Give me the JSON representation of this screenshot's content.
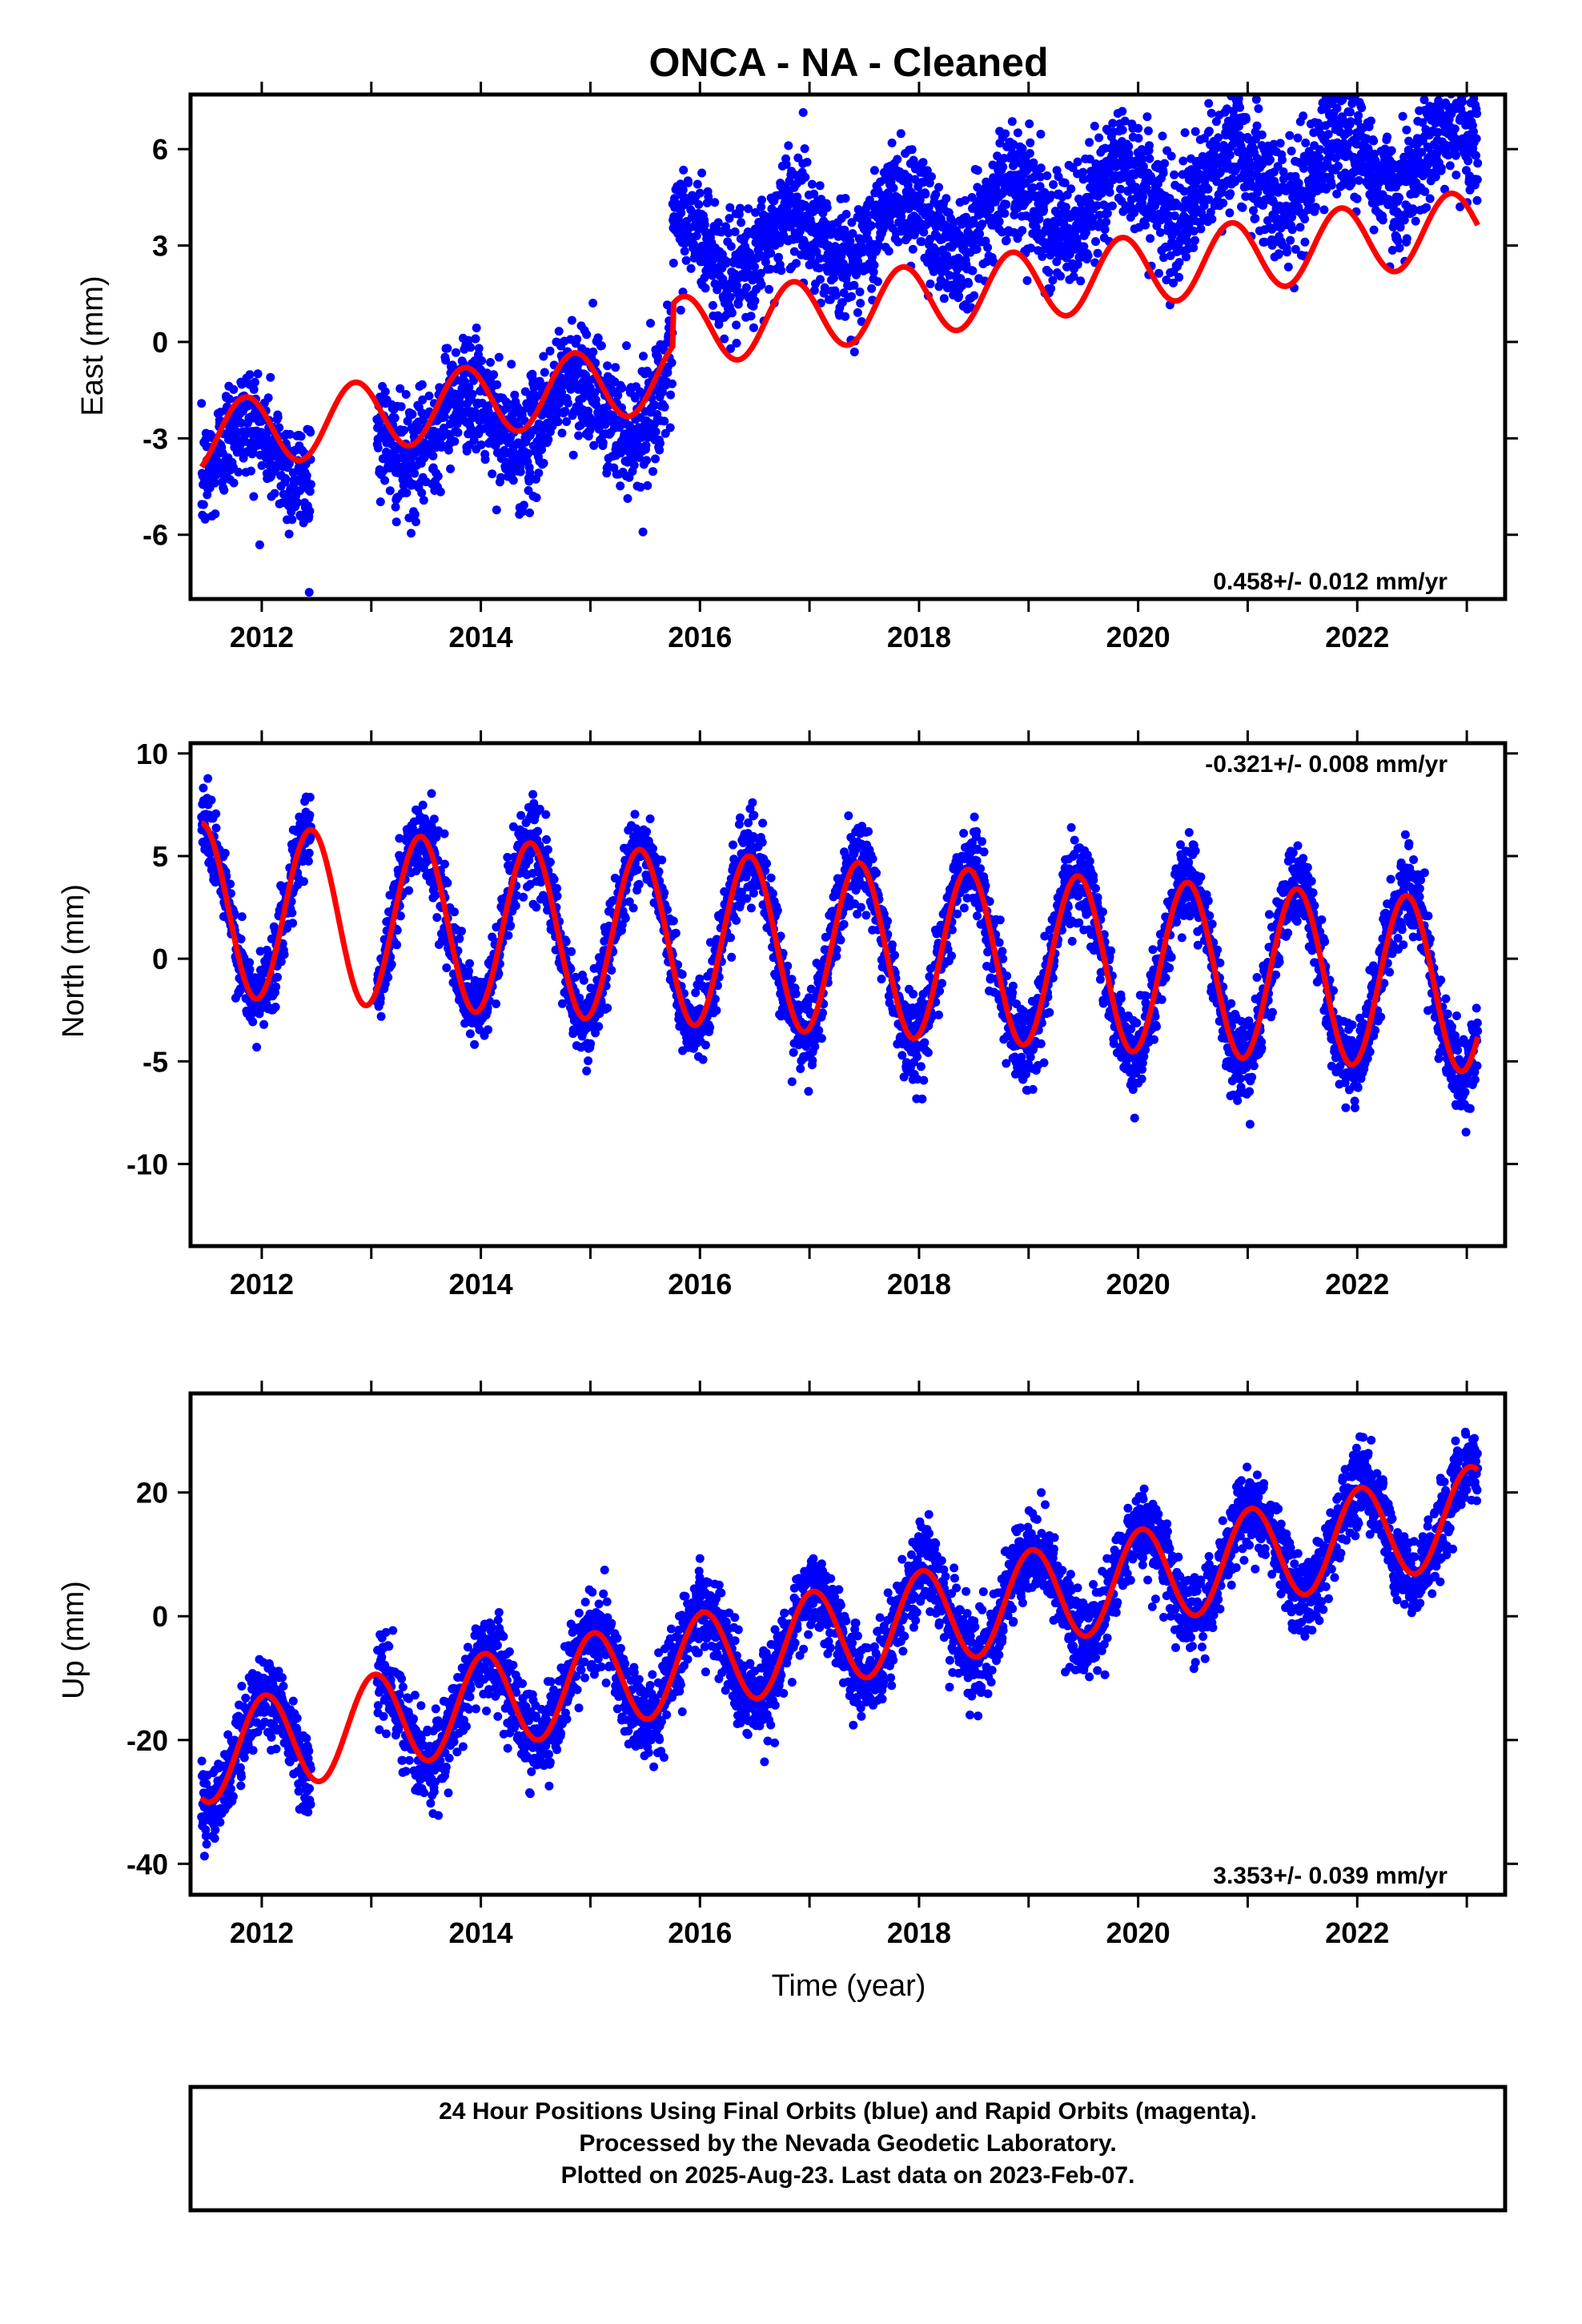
{
  "chart_data": [
    {
      "type": "scatter",
      "title": "ONCA  - NA - Cleaned",
      "ylabel": "East (mm)",
      "xlabel": "",
      "xlim": [
        2011.35,
        2023.35
      ],
      "ylim": [
        -8,
        7.7
      ],
      "xticks": [
        "2012",
        "2014",
        "2016",
        "2018",
        "2020",
        "2022"
      ],
      "yticks": [
        "6",
        "3",
        "0",
        "-3",
        "-6"
      ],
      "rate_label": "0.458+/- 0.012 mm/yr",
      "rate_position": "bottom-right",
      "series": [
        {
          "name": "Final Orbits",
          "color": "#0000ff",
          "start": 2011.45,
          "end": 2023.1,
          "trend": 0.458,
          "offset": -3.6,
          "step_at": 2015.75,
          "step": 4.3,
          "amplitude": 1.0,
          "phase": 0.6,
          "noise": 1.2
        },
        {
          "name": "Model",
          "color": "#ff0000",
          "start": 2011.45,
          "end": 2023.1,
          "trend": 0.458,
          "offset": -3.0,
          "amplitude": 1.1,
          "phase": 0.6
        }
      ]
    },
    {
      "type": "scatter",
      "title": "",
      "ylabel": "North (mm)",
      "xlabel": "",
      "xlim": [
        2011.35,
        2023.35
      ],
      "ylim": [
        -14,
        10.5
      ],
      "xticks": [
        "2012",
        "2014",
        "2016",
        "2018",
        "2020",
        "2022"
      ],
      "yticks": [
        "10",
        "5",
        "0",
        "-5",
        "-10"
      ],
      "rate_label": "-0.321+/- 0.008 mm/yr",
      "rate_position": "top-right",
      "series": [
        {
          "name": "Final Orbits",
          "color": "#0000ff",
          "start": 2011.45,
          "end": 2023.1,
          "trend": -0.321,
          "offset": 2.4,
          "amplitude": 4.3,
          "phase": 0.2,
          "noise": 1.3
        },
        {
          "name": "Model",
          "color": "#ff0000",
          "start": 2011.45,
          "end": 2023.1,
          "trend": -0.321,
          "offset": 2.4,
          "amplitude": 4.2,
          "phase": 0.2
        }
      ]
    },
    {
      "type": "scatter",
      "title": "",
      "ylabel": "Up (mm)",
      "xlabel": "Time (year)",
      "xlim": [
        2011.35,
        2023.35
      ],
      "ylim": [
        -45,
        36
      ],
      "xticks": [
        "2012",
        "2014",
        "2016",
        "2018",
        "2020",
        "2022"
      ],
      "yticks": [
        "20",
        "0",
        "-20",
        "-40"
      ],
      "rate_label": "3.353+/- 0.039 mm/yr",
      "rate_position": "bottom-right",
      "series": [
        {
          "name": "Final Orbits",
          "color": "#0000ff",
          "start": 2011.45,
          "end": 2023.1,
          "trend": 3.353,
          "offset": -22.5,
          "amplitude": 8.0,
          "phase": 0.78,
          "noise": 4.5
        },
        {
          "name": "Model",
          "color": "#ff0000",
          "start": 2011.45,
          "end": 2023.1,
          "trend": 3.353,
          "offset": -22.5,
          "amplitude": 7.8,
          "phase": 0.78
        }
      ]
    }
  ],
  "footer": {
    "line1": "24 Hour Positions Using Final Orbits (blue) and Rapid Orbits (magenta).",
    "line2": "Processed by the Nevada Geodetic Laboratory.",
    "line3": "Plotted on 2025-Aug-23. Last data on 2023-Feb-07."
  }
}
